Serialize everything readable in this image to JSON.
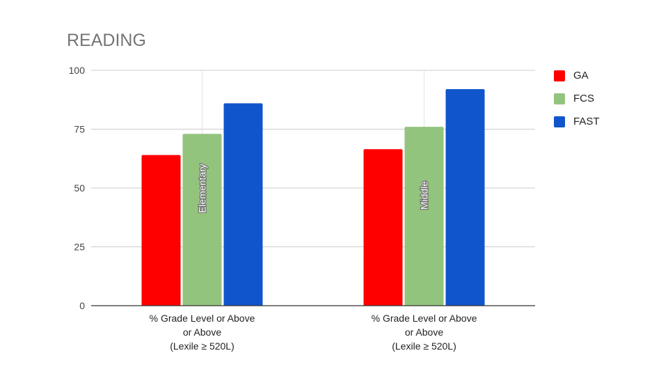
{
  "chart_data": {
    "type": "bar",
    "title": "READING",
    "categories": [
      [
        "% Grade Level or Above",
        "or Above",
        "(Lexile ≥ 520L)"
      ],
      [
        "% Grade Level or Above",
        "or Above",
        "(Lexile ≥ 520L)"
      ]
    ],
    "group_labels": [
      "Elementary",
      "Middle"
    ],
    "series": [
      {
        "name": "GA",
        "color": "#ff0000",
        "values": [
          64,
          66.5
        ]
      },
      {
        "name": "FCS",
        "color": "#93c47d",
        "values": [
          73,
          76
        ]
      },
      {
        "name": "FAST",
        "color": "#1155cc",
        "values": [
          86,
          92
        ]
      }
    ],
    "ylim": [
      0,
      100
    ],
    "yticks": [
      0,
      25,
      50,
      75,
      100
    ],
    "grid": true,
    "legend_position": "right"
  }
}
